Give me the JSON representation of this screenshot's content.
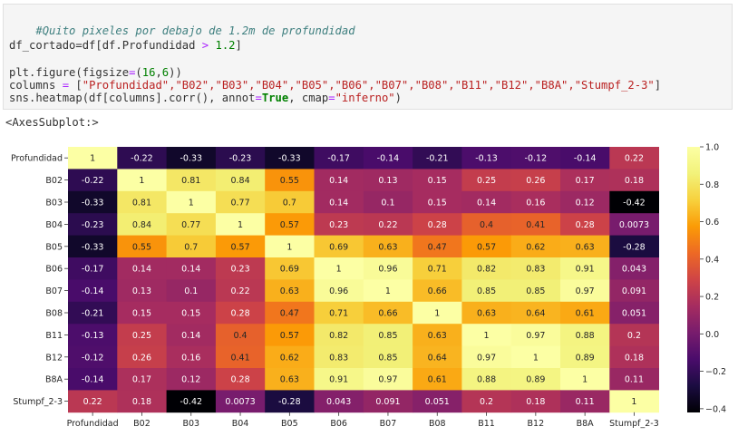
{
  "code": {
    "comment": "#Quito pixeles por debajo de 1.2m de profundidad",
    "line2": {
      "a": "df_cortado",
      "b": "=df[df.Profundidad ",
      "op": ">",
      "c": " ",
      "num": "1.2",
      "d": "]"
    },
    "line3": {
      "a": "plt.figure(figsize",
      "b": "=",
      "c": "(",
      "n1": "16",
      "d": ",",
      "n2": "6",
      "e": "))"
    },
    "line4": {
      "a": "columns ",
      "b": "=",
      "c": " [",
      "items": "\"Profundidad\",\"B02\",\"B03\",\"B04\",\"B05\",\"B06\",\"B07\",\"B08\",\"B11\",\"B12\",\"B8A\",\"Stumpf_2-3\"",
      "d": "]"
    },
    "line5": {
      "a": "sns.heatmap(df[columns].corr(), annot",
      "b": "=",
      "kw": "True",
      "c": ", cmap",
      "d": "=",
      "str": "\"inferno\"",
      "e": ")"
    }
  },
  "output_text": "<AxesSubplot:>",
  "chart_data": {
    "type": "heatmap",
    "cmap": "inferno",
    "labels": [
      "Profundidad",
      "B02",
      "B03",
      "B04",
      "B05",
      "B06",
      "B07",
      "B08",
      "B11",
      "B12",
      "B8A",
      "Stumpf_2-3"
    ],
    "values": [
      [
        1,
        -0.22,
        -0.33,
        -0.23,
        -0.33,
        -0.17,
        -0.14,
        -0.21,
        -0.13,
        -0.12,
        -0.14,
        0.22
      ],
      [
        -0.22,
        1,
        0.81,
        0.84,
        0.55,
        0.14,
        0.13,
        0.15,
        0.25,
        0.26,
        0.17,
        0.18
      ],
      [
        -0.33,
        0.81,
        1,
        0.77,
        0.7,
        0.14,
        0.1,
        0.15,
        0.14,
        0.16,
        0.12,
        -0.42
      ],
      [
        -0.23,
        0.84,
        0.77,
        1,
        0.57,
        0.23,
        0.22,
        0.28,
        0.4,
        0.41,
        0.28,
        0.0073
      ],
      [
        -0.33,
        0.55,
        0.7,
        0.57,
        1,
        0.69,
        0.63,
        0.47,
        0.57,
        0.62,
        0.63,
        -0.28
      ],
      [
        -0.17,
        0.14,
        0.14,
        0.23,
        0.69,
        1,
        0.96,
        0.71,
        0.82,
        0.83,
        0.91,
        0.043
      ],
      [
        -0.14,
        0.13,
        0.1,
        0.22,
        0.63,
        0.96,
        1,
        0.66,
        0.85,
        0.85,
        0.97,
        0.091
      ],
      [
        -0.21,
        0.15,
        0.15,
        0.28,
        0.47,
        0.71,
        0.66,
        1,
        0.63,
        0.64,
        0.61,
        0.051
      ],
      [
        -0.13,
        0.25,
        0.14,
        0.4,
        0.57,
        0.82,
        0.85,
        0.63,
        1,
        0.97,
        0.88,
        0.2
      ],
      [
        -0.12,
        0.26,
        0.16,
        0.41,
        0.62,
        0.83,
        0.85,
        0.64,
        0.97,
        1,
        0.89,
        0.18
      ],
      [
        -0.14,
        0.17,
        0.12,
        0.28,
        0.63,
        0.91,
        0.97,
        0.61,
        0.88,
        0.89,
        1,
        0.11
      ],
      [
        0.22,
        0.18,
        -0.42,
        0.0073,
        -0.28,
        0.043,
        0.091,
        0.051,
        0.2,
        0.18,
        0.11,
        1
      ]
    ],
    "annotations": [
      [
        "1",
        "-0.22",
        "-0.33",
        "-0.23",
        "-0.33",
        "-0.17",
        "-0.14",
        "-0.21",
        "-0.13",
        "-0.12",
        "-0.14",
        "0.22"
      ],
      [
        "-0.22",
        "1",
        "0.81",
        "0.84",
        "0.55",
        "0.14",
        "0.13",
        "0.15",
        "0.25",
        "0.26",
        "0.17",
        "0.18"
      ],
      [
        "-0.33",
        "0.81",
        "1",
        "0.77",
        "0.7",
        "0.14",
        "0.1",
        "0.15",
        "0.14",
        "0.16",
        "0.12",
        "-0.42"
      ],
      [
        "-0.23",
        "0.84",
        "0.77",
        "1",
        "0.57",
        "0.23",
        "0.22",
        "0.28",
        "0.4",
        "0.41",
        "0.28",
        "0.0073"
      ],
      [
        "-0.33",
        "0.55",
        "0.7",
        "0.57",
        "1",
        "0.69",
        "0.63",
        "0.47",
        "0.57",
        "0.62",
        "0.63",
        "-0.28"
      ],
      [
        "-0.17",
        "0.14",
        "0.14",
        "0.23",
        "0.69",
        "1",
        "0.96",
        "0.71",
        "0.82",
        "0.83",
        "0.91",
        "0.043"
      ],
      [
        "-0.14",
        "0.13",
        "0.1",
        "0.22",
        "0.63",
        "0.96",
        "1",
        "0.66",
        "0.85",
        "0.85",
        "0.97",
        "0.091"
      ],
      [
        "-0.21",
        "0.15",
        "0.15",
        "0.28",
        "0.47",
        "0.71",
        "0.66",
        "1",
        "0.63",
        "0.64",
        "0.61",
        "0.051"
      ],
      [
        "-0.13",
        "0.25",
        "0.14",
        "0.4",
        "0.57",
        "0.82",
        "0.85",
        "0.63",
        "1",
        "0.97",
        "0.88",
        "0.2"
      ],
      [
        "-0.12",
        "0.26",
        "0.16",
        "0.41",
        "0.62",
        "0.83",
        "0.85",
        "0.64",
        "0.97",
        "1",
        "0.89",
        "0.18"
      ],
      [
        "-0.14",
        "0.17",
        "0.12",
        "0.28",
        "0.63",
        "0.91",
        "0.97",
        "0.61",
        "0.88",
        "0.89",
        "1",
        "0.11"
      ],
      [
        "0.22",
        "0.18",
        "-0.42",
        "0.0073",
        "-0.28",
        "0.043",
        "0.091",
        "0.051",
        "0.2",
        "0.18",
        "0.11",
        "1"
      ]
    ],
    "colorbar": {
      "vmin": -0.42,
      "vmax": 1.0,
      "ticks": [
        1.0,
        0.8,
        0.6,
        0.4,
        0.2,
        0.0,
        -0.2,
        -0.4
      ],
      "tick_labels": [
        "1.0",
        "0.8",
        "0.6",
        "0.4",
        "0.2",
        "0.0",
        "−0.2",
        "−0.4"
      ]
    }
  }
}
